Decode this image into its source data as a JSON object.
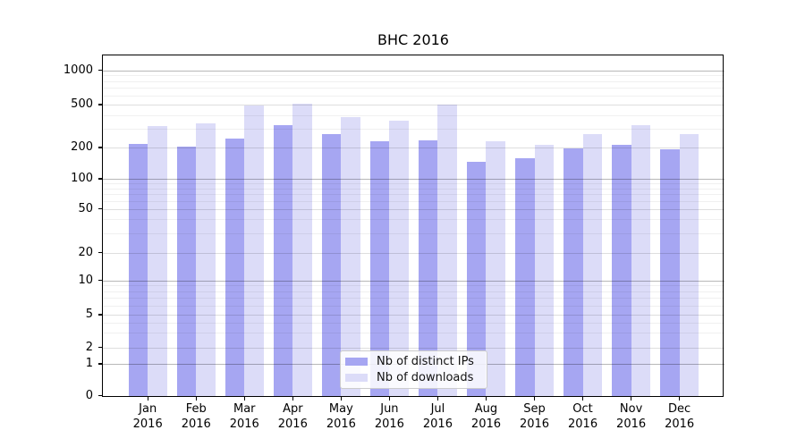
{
  "figure": {
    "title": "BHC 2016"
  },
  "chart_data": {
    "type": "bar",
    "title": "BHC 2016",
    "categories": [
      "Jan 2016",
      "Feb 2016",
      "Mar 2016",
      "Apr 2016",
      "May 2016",
      "Jun 2016",
      "Jul 2016",
      "Aug 2016",
      "Sep 2016",
      "Oct 2016",
      "Nov 2016",
      "Dec 2016"
    ],
    "series": [
      {
        "name": "Nb of distinct IPs",
        "color": "#a6a6f2",
        "values": [
          215,
          205,
          240,
          320,
          265,
          228,
          232,
          145,
          158,
          196,
          213,
          194
        ]
      },
      {
        "name": "Nb of downloads",
        "color": "#dcdcf8",
        "values": [
          315,
          335,
          495,
          510,
          380,
          358,
          500,
          230,
          211,
          267,
          320,
          265
        ]
      }
    ],
    "xlabel": "",
    "ylabel": "",
    "yscale": "symlog",
    "yticks": [
      0,
      1,
      2,
      5,
      10,
      20,
      50,
      100,
      200,
      500,
      1000
    ],
    "ytick_labels": [
      "0",
      "1",
      "2",
      "5",
      "10",
      "20",
      "50",
      "100",
      "200",
      "500",
      "1000"
    ],
    "ylim": [
      0,
      1400
    ],
    "grid": true,
    "bar_group_width": 0.8,
    "legend": {
      "position": "lower center",
      "entries": [
        "Nb of distinct IPs",
        "Nb of downloads"
      ]
    }
  }
}
